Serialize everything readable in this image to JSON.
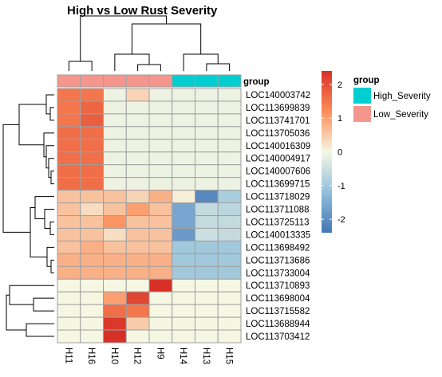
{
  "chart_data": {
    "type": "heatmap",
    "title": "High vs Low Rust Severity",
    "columns": [
      "H11",
      "H16",
      "H10",
      "H12",
      "H9",
      "H14",
      "H13",
      "H15"
    ],
    "rows": [
      "LOC140003742",
      "LOC113699839",
      "LOC113741701",
      "LOC113705036",
      "LOC140016309",
      "LOC140004917",
      "LOC140007606",
      "LOC113699715",
      "LOC113718029",
      "LOC113711088",
      "LOC113725113",
      "LOC140013335",
      "LOC113698492",
      "LOC113713686",
      "LOC113733004",
      "LOC113710893",
      "LOC113698004",
      "LOC113715582",
      "LOC113688944",
      "LOC113703412"
    ],
    "values": [
      [
        1.5,
        1.5,
        -0.1,
        0.4,
        -0.1,
        -0.1,
        -0.1,
        -0.1
      ],
      [
        1.5,
        1.7,
        -0.1,
        -0.1,
        -0.1,
        -0.1,
        -0.1,
        -0.1
      ],
      [
        1.5,
        1.8,
        -0.1,
        -0.1,
        -0.1,
        -0.1,
        -0.1,
        -0.1
      ],
      [
        1.6,
        1.6,
        -0.1,
        -0.1,
        -0.1,
        -0.1,
        -0.1,
        -0.1
      ],
      [
        1.6,
        1.6,
        -0.1,
        -0.1,
        -0.1,
        -0.1,
        -0.1,
        -0.1
      ],
      [
        1.6,
        1.6,
        -0.1,
        -0.1,
        -0.1,
        -0.1,
        -0.1,
        -0.1
      ],
      [
        1.6,
        1.6,
        -0.1,
        -0.1,
        -0.1,
        -0.1,
        -0.1,
        -0.1
      ],
      [
        1.6,
        1.6,
        -0.1,
        -0.1,
        -0.1,
        -0.1,
        -0.1,
        -0.1
      ],
      [
        0.6,
        0.6,
        0.6,
        0.4,
        0.8,
        0.1,
        -2.1,
        -0.9
      ],
      [
        0.6,
        0.3,
        0.6,
        1.0,
        0.6,
        -1.6,
        -0.6,
        -0.7
      ],
      [
        0.6,
        0.6,
        1.1,
        0.6,
        0.6,
        -1.6,
        -0.6,
        -0.6
      ],
      [
        0.6,
        0.6,
        0.3,
        0.6,
        0.6,
        -1.8,
        -0.5,
        -0.6
      ],
      [
        0.6,
        0.8,
        0.6,
        0.6,
        0.6,
        -1.0,
        -1.0,
        -1.0
      ],
      [
        0.8,
        0.8,
        0.8,
        0.8,
        0.8,
        -1.0,
        -1.0,
        -1.0
      ],
      [
        0.8,
        0.8,
        0.8,
        0.8,
        0.8,
        -1.0,
        -1.0,
        -1.0
      ],
      [
        0.0,
        0.0,
        0.0,
        0.0,
        2.4,
        0.0,
        0.0,
        0.0
      ],
      [
        0.0,
        0.0,
        1.0,
        2.1,
        0.0,
        0.0,
        0.0,
        0.0
      ],
      [
        0.0,
        0.0,
        1.6,
        1.5,
        0.0,
        0.0,
        0.0,
        0.0
      ],
      [
        0.0,
        0.0,
        2.3,
        0.5,
        0.0,
        0.0,
        0.0,
        0.0
      ],
      [
        0.0,
        0.0,
        2.4,
        0.0,
        0.0,
        0.0,
        0.0,
        0.0
      ]
    ],
    "annotation": {
      "label": "group",
      "values": [
        "Low_Severity",
        "Low_Severity",
        "Low_Severity",
        "Low_Severity",
        "Low_Severity",
        "High_Severity",
        "High_Severity",
        "High_Severity"
      ]
    },
    "color_scale": {
      "domain": [
        -2.4,
        -1.2,
        0,
        1.2,
        2.4
      ],
      "colors": [
        "#4575b4",
        "#91bfdb",
        "#f5f7e3",
        "#fc8d59",
        "#d73027"
      ],
      "ticks": [
        "2",
        "1",
        "0",
        "-1",
        "-2"
      ],
      "tick_values": [
        2,
        1,
        0,
        -1,
        -2
      ],
      "range": [
        -2.4,
        2.4
      ]
    },
    "legend": {
      "title": "group",
      "entries": [
        {
          "label": "High_Severity",
          "color": "#00ced1"
        },
        {
          "label": "Low_Severity",
          "color": "#f4968e"
        }
      ]
    },
    "cell_border_color": "#a0a0a0",
    "dendrogram_color": "#000000"
  }
}
